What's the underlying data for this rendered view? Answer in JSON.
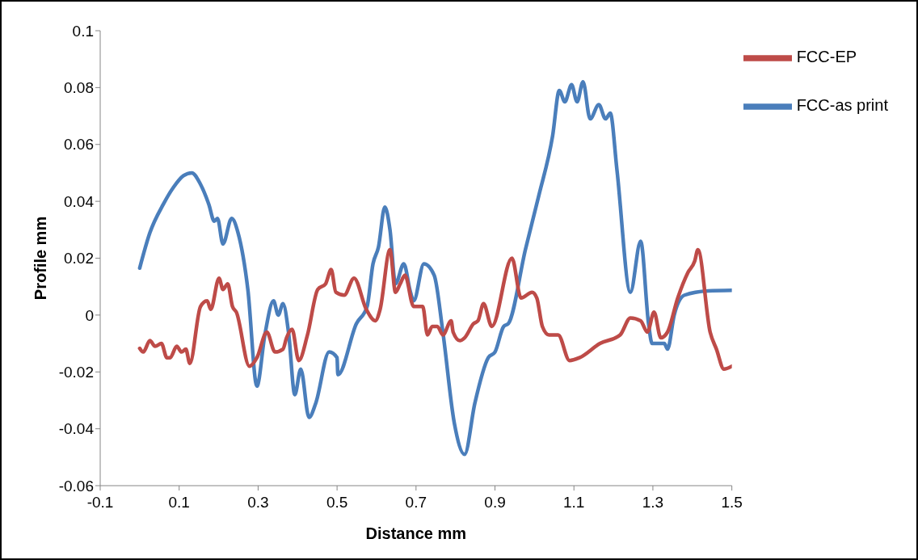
{
  "chart_data": {
    "type": "line",
    "xlabel": "Distance mm",
    "ylabel": "Profile  mm",
    "xlim": [
      -0.1,
      1.5
    ],
    "xticks": [
      -0.1,
      0.1,
      0.3,
      0.5,
      0.7,
      0.9,
      1.1,
      1.3,
      1.5
    ],
    "ylim": [
      -0.06,
      0.1
    ],
    "yticks": [
      -0.06,
      -0.04,
      -0.02,
      0,
      0.02,
      0.04,
      0.06,
      0.08,
      0.1
    ],
    "grid": false,
    "legend": "top right",
    "marker": "none",
    "line_style": "solid",
    "series": [
      {
        "name": "FCC-as print",
        "color": "#4a7ebb",
        "x": [
          0,
          0.026,
          0.06,
          0.086,
          0.111,
          0.132,
          0.154,
          0.175,
          0.189,
          0.197,
          0.211,
          0.233,
          0.249,
          0.274,
          0.297,
          0.317,
          0.339,
          0.351,
          0.363,
          0.377,
          0.393,
          0.408,
          0.429,
          0.446,
          0.48,
          0.5,
          0.502,
          0.549,
          0.576,
          0.591,
          0.605,
          0.621,
          0.634,
          0.648,
          0.669,
          0.686,
          0.694,
          0.72,
          0.746,
          0.768,
          0.797,
          0.823,
          0.849,
          0.883,
          0.9,
          0.922,
          0.934,
          0.977,
          1.011,
          1.046,
          1.063,
          1.077,
          1.094,
          1.108,
          1.123,
          1.141,
          1.163,
          1.18,
          1.192,
          1.209,
          1.243,
          1.269,
          1.289,
          1.298,
          1.329,
          1.337,
          1.354,
          1.38,
          1.44,
          1.5
        ],
        "values": [
          0.0165,
          0.029,
          0.039,
          0.045,
          0.049,
          0.05,
          0.046,
          0.039,
          0.033,
          0.034,
          0.025,
          0.034,
          0.029,
          0.009,
          -0.025,
          -0.007,
          0.005,
          0,
          0.004,
          -0.006,
          -0.028,
          -0.019,
          -0.036,
          -0.031,
          -0.013,
          -0.015,
          -0.021,
          -0.003,
          0.003,
          0.018,
          0.024,
          0.038,
          0.03,
          0.011,
          0.018,
          0.008,
          0.005,
          0.018,
          0.014,
          -0.006,
          -0.038,
          -0.049,
          -0.031,
          -0.015,
          -0.013,
          -0.004,
          -0.003,
          0.023,
          0.042,
          0.063,
          0.079,
          0.075,
          0.081,
          0.075,
          0.082,
          0.069,
          0.074,
          0.069,
          0.071,
          0.051,
          0.008,
          0.026,
          -0.003,
          -0.01,
          -0.01,
          -0.012,
          0,
          0.007,
          0.0085,
          0.0087
        ]
      },
      {
        "name": "FCC-EP",
        "color": "#be4b48",
        "x": [
          0,
          0.009,
          0.026,
          0.039,
          0.055,
          0.069,
          0.077,
          0.094,
          0.106,
          0.117,
          0.127,
          0.154,
          0.171,
          0.18,
          0.201,
          0.211,
          0.223,
          0.235,
          0.245,
          0.278,
          0.297,
          0.322,
          0.343,
          0.363,
          0.372,
          0.386,
          0.403,
          0.425,
          0.451,
          0.471,
          0.485,
          0.497,
          0.518,
          0.543,
          0.574,
          0.597,
          0.609,
          0.634,
          0.648,
          0.66,
          0.672,
          0.694,
          0.717,
          0.729,
          0.741,
          0.754,
          0.768,
          0.789,
          0.794,
          0.811,
          0.823,
          0.846,
          0.857,
          0.871,
          0.892,
          0.943,
          0.966,
          0.994,
          1.006,
          1.02,
          1.037,
          1.06,
          1.089,
          1.114,
          1.166,
          1.217,
          1.243,
          1.269,
          1.286,
          1.303,
          1.32,
          1.337,
          1.363,
          1.389,
          1.406,
          1.414,
          1.445,
          1.461,
          1.48,
          1.5
        ],
        "values": [
          -0.0117,
          -0.013,
          -0.009,
          -0.011,
          -0.01,
          -0.015,
          -0.015,
          -0.011,
          -0.013,
          -0.012,
          -0.017,
          0.003,
          0.005,
          0.002,
          0.013,
          0.009,
          0.011,
          0.003,
          0.001,
          -0.018,
          -0.015,
          -0.006,
          -0.013,
          -0.012,
          -0.008,
          -0.005,
          -0.016,
          -0.007,
          0.009,
          0.011,
          0.016,
          0.008,
          0.007,
          0.013,
          0.002,
          -0.002,
          0.002,
          0.023,
          0.008,
          0.011,
          0.014,
          0.003,
          0.003,
          -0.007,
          -0.004,
          -0.004,
          -0.007,
          -0.002,
          -0.006,
          -0.009,
          -0.008,
          -0.003,
          -0.002,
          0.004,
          -0.004,
          0.02,
          0.006,
          0.008,
          0.006,
          -0.004,
          -0.007,
          -0.007,
          -0.016,
          -0.015,
          -0.01,
          -0.007,
          -0.001,
          -0.002,
          -0.006,
          0.001,
          -0.008,
          -0.006,
          0.006,
          0.015,
          0.019,
          0.023,
          -0.006,
          -0.012,
          -0.019,
          -0.018
        ]
      }
    ]
  }
}
